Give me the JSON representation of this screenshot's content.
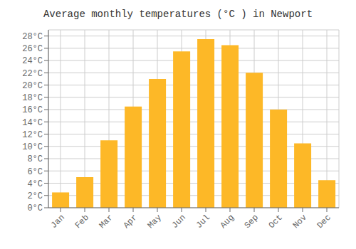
{
  "chart_data": {
    "type": "bar",
    "title": "Average monthly temperatures (°C ) in Newport",
    "categories": [
      "Jan",
      "Feb",
      "Mar",
      "Apr",
      "May",
      "Jun",
      "Jul",
      "Aug",
      "Sep",
      "Oct",
      "Nov",
      "Dec"
    ],
    "values": [
      2.5,
      5.0,
      11.0,
      16.5,
      21.0,
      25.5,
      27.5,
      26.5,
      22.0,
      16.0,
      10.5,
      4.5
    ],
    "color": "#FDB827",
    "ylim": [
      0,
      29
    ],
    "yticks": [
      {
        "value": 0,
        "label": "0°C"
      },
      {
        "value": 2,
        "label": "2°C"
      },
      {
        "value": 4,
        "label": "4°C"
      },
      {
        "value": 6,
        "label": "6°C"
      },
      {
        "value": 8,
        "label": "8°C"
      },
      {
        "value": 10,
        "label": "10°C"
      },
      {
        "value": 12,
        "label": "12°C"
      },
      {
        "value": 14,
        "label": "14°C"
      },
      {
        "value": 16,
        "label": "16°C"
      },
      {
        "value": 18,
        "label": "18°C"
      },
      {
        "value": 20,
        "label": "20°C"
      },
      {
        "value": 22,
        "label": "22°C"
      },
      {
        "value": 24,
        "label": "24°C"
      },
      {
        "value": 26,
        "label": "26°C"
      },
      {
        "value": 28,
        "label": "28°C"
      }
    ],
    "grid": true
  }
}
